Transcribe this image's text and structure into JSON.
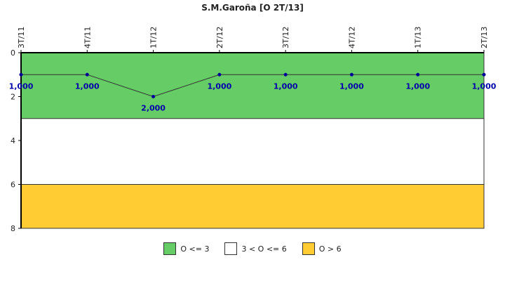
{
  "chart_data": {
    "type": "line",
    "title": "S.M.Garoña [O 2T/13]",
    "categories": [
      "3T/11",
      "4T/11",
      "1T/12",
      "2T/12",
      "3T/12",
      "4T/12",
      "1T/13",
      "2T/13"
    ],
    "series": [
      {
        "values": [
          1,
          1,
          2,
          1,
          1,
          1,
          1,
          1
        ]
      }
    ],
    "data_labels": [
      "1,000",
      "1,000",
      "2,000",
      "1,000",
      "1,000",
      "1,000",
      "1,000",
      "1,000"
    ],
    "y_axis": {
      "min": 0,
      "max": 8,
      "ticks": [
        "0",
        "2",
        "4",
        "6",
        "8"
      ],
      "inverted": true
    },
    "x_axis_position": "top",
    "bands": [
      {
        "from": 0,
        "to": 3,
        "color": "#66cc66",
        "label": "O <= 3"
      },
      {
        "from": 3,
        "to": 6,
        "color": "#ffffff",
        "label": "3 < O <= 6"
      },
      {
        "from": 6,
        "to": 8,
        "color": "#ffcc33",
        "label": "O > 6"
      }
    ],
    "line_color": "#333333",
    "marker_color": "#000099",
    "label_color": "#0000aa",
    "legend_position": "bottom"
  }
}
